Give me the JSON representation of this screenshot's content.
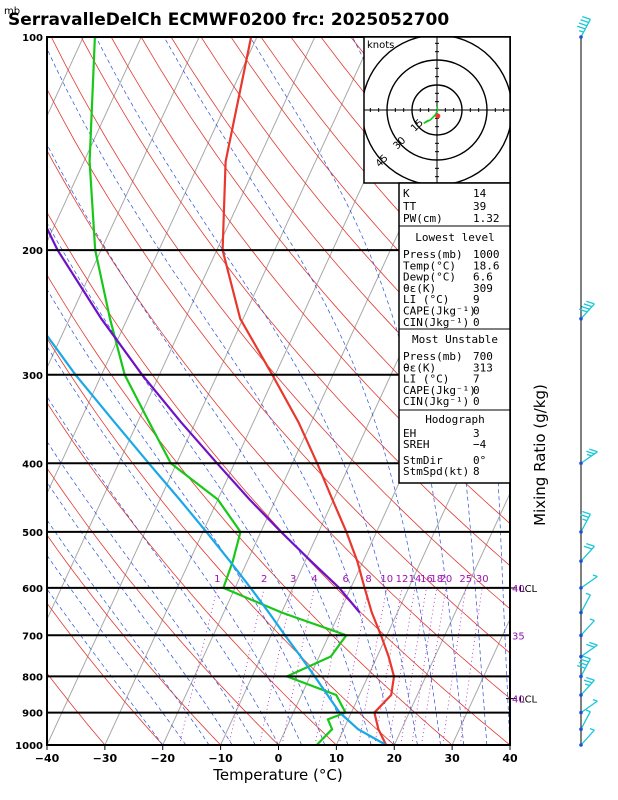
{
  "chart_data": {
    "type": "line",
    "title": "SerravalleDelCh ECMWF0200 frc: 2025052700",
    "pressure_unit": "mb",
    "xlabel": "Temperature (°C)",
    "right_label": "Mixing Ratio (g/kg)",
    "x_ticks": [
      -40,
      -30,
      -20,
      -10,
      0,
      10,
      20,
      30,
      40
    ],
    "xlim": [
      -40,
      40
    ],
    "p_ticks": [
      100,
      200,
      300,
      400,
      500,
      600,
      700,
      800,
      900,
      1000
    ],
    "plim": [
      100,
      1000
    ],
    "series": [
      {
        "name": "temperature",
        "color": "#e8382e",
        "p": [
          1000,
          950,
          900,
          850,
          800,
          750,
          700,
          650,
          600,
          550,
          500,
          450,
          400,
          350,
          300,
          250,
          200,
          150,
          100
        ],
        "t": [
          18.6,
          16.0,
          14.0,
          15.5,
          14.5,
          12.0,
          9.0,
          5.6,
          2.4,
          -1.0,
          -5.2,
          -10.2,
          -15.7,
          -22.2,
          -30.5,
          -40.5,
          -49.0,
          -55.5,
          -61.0
        ]
      },
      {
        "name": "dewpoint",
        "color": "#18c818",
        "p": [
          1000,
          950,
          920,
          900,
          850,
          800,
          750,
          700,
          650,
          600,
          550,
          500,
          450,
          400,
          350,
          300,
          250,
          200,
          150,
          100
        ],
        "t": [
          6.6,
          8.0,
          6.5,
          9.0,
          6.0,
          -4.0,
          2.0,
          3.0,
          -10.0,
          -22.0,
          -22.5,
          -23.5,
          -30.0,
          -41.0,
          -48.0,
          -56.0,
          -63.0,
          -71.0,
          -79.0,
          -88.0
        ]
      },
      {
        "name": "parcel",
        "color": "#1aa8e8",
        "p": [
          1000,
          950,
          900,
          850,
          800,
          750,
          700,
          650,
          600,
          550,
          500,
          450,
          400,
          350,
          300,
          250,
          200,
          150,
          100
        ],
        "t": [
          18.6,
          12.5,
          8.0,
          4.5,
          0.8,
          -3.2,
          -7.6,
          -12.2,
          -17.3,
          -23.0,
          -29.4,
          -36.6,
          -44.8,
          -54.0,
          -64.5,
          -76.0,
          -89.0,
          -103.0,
          -120.0
        ]
      },
      {
        "name": "virtual-temperature",
        "color": "#7010c8",
        "p": [
          650,
          600,
          550,
          500,
          450,
          400,
          350,
          300,
          250,
          200,
          150,
          100
        ],
        "t": [
          3.5,
          -2.0,
          -9.0,
          -16.5,
          -24.5,
          -33.0,
          -42.5,
          -53.0,
          -64.5,
          -77.5,
          -92.0,
          -108.0
        ]
      }
    ],
    "mixing_ratio_labels": [
      "1",
      "2",
      "3",
      "4",
      "6",
      "8",
      "10",
      "12",
      "14",
      "16",
      "18",
      "20",
      "25",
      "30"
    ],
    "level_markers": [
      {
        "label": "LCL",
        "p": 600
      },
      {
        "label": "LCL",
        "p": 860
      }
    ],
    "purple_labels": [
      {
        "label": "40",
        "p": 600
      },
      {
        "label": "35",
        "p": 700
      },
      {
        "label": "40",
        "p": 860
      }
    ],
    "hodograph": {
      "unit": "knots",
      "ring_labels": [
        "15",
        "30",
        "45"
      ],
      "trace": [
        [
          0,
          2
        ],
        [
          0.5,
          0
        ],
        [
          -1,
          -3
        ],
        [
          -4,
          -6
        ],
        [
          -8,
          -8
        ],
        [
          -5,
          -6
        ]
      ]
    },
    "wind_barbs": [
      {
        "p": 100,
        "speed": 25
      },
      {
        "p": 250,
        "speed": 20
      },
      {
        "p": 400,
        "speed": 15
      },
      {
        "p": 500,
        "speed": 15
      },
      {
        "p": 550,
        "speed": 10
      },
      {
        "p": 600,
        "speed": 5
      },
      {
        "p": 650,
        "speed": 5
      },
      {
        "p": 700,
        "speed": 5
      },
      {
        "p": 750,
        "speed": 10
      },
      {
        "p": 800,
        "speed": 20
      },
      {
        "p": 850,
        "speed": 15
      },
      {
        "p": 900,
        "speed": 5
      },
      {
        "p": 950,
        "speed": 5
      },
      {
        "p": 1000,
        "speed": 5
      }
    ]
  },
  "indices": {
    "k_label": "K",
    "k_value": "14",
    "tt_label": "TT",
    "tt_value": "39",
    "pw_label": "PW(cm)",
    "pw_value": "1.32",
    "lowest_header": "Lowest level",
    "lowest_rows": [
      {
        "label": "Press(mb)",
        "value": "1000"
      },
      {
        "label": "Temp(°C)",
        "value": "18.6"
      },
      {
        "label": "Dewp(°C)",
        "value": "6.6"
      },
      {
        "label": "θε(K)",
        "value": "309"
      },
      {
        "label": "LI (°C)",
        "value": "9"
      },
      {
        "label": "CAPE(Jkg⁻¹)",
        "value": "0"
      },
      {
        "label": "CIN(Jkg⁻¹)",
        "value": "0"
      }
    ],
    "unstable_header": "Most Unstable",
    "unstable_rows": [
      {
        "label": "Press(mb)",
        "value": "700"
      },
      {
        "label": "θε(K)",
        "value": "313"
      },
      {
        "label": "LI (°C)",
        "value": "7"
      },
      {
        "label": "CAPE(Jkg⁻¹)",
        "value": "0"
      },
      {
        "label": "CIN(Jkg⁻¹)",
        "value": "0"
      }
    ],
    "hodo_header": "Hodograph",
    "hodo_rows": [
      {
        "label": "EH",
        "value": "3"
      },
      {
        "label": "SREH",
        "value": "−4"
      }
    ],
    "storm_rows": [
      {
        "label": "StmDir",
        "value": "0°"
      },
      {
        "label": "StmSpd(kt)",
        "value": "8"
      }
    ]
  }
}
